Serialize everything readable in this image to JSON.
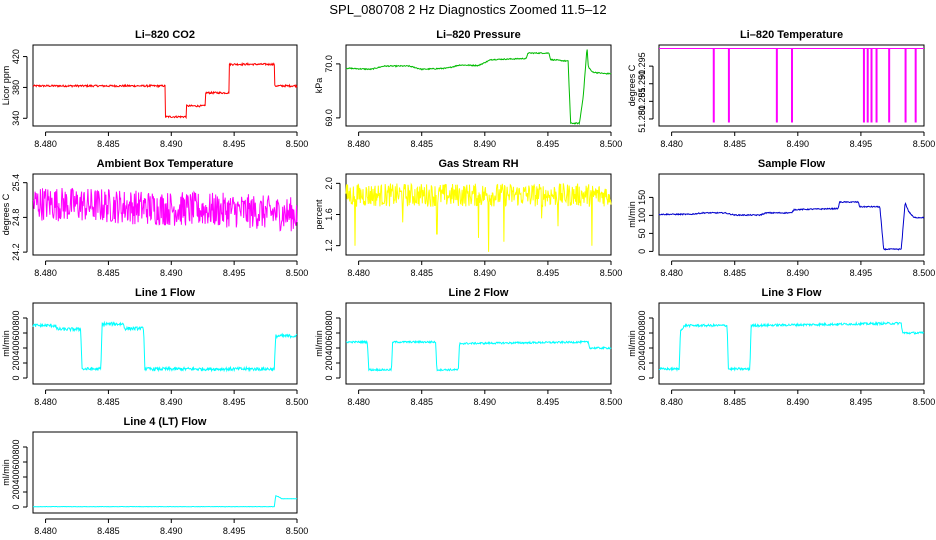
{
  "page": {
    "title": "SPL_080708  2 Hz Diagnostics Zoomed 11.5–12"
  },
  "chart_data": [
    {
      "type": "line",
      "title": "Li–820 CO2",
      "ylabel": "Licor ppm",
      "color": "#ff0000",
      "xlim": [
        8.479,
        8.5
      ],
      "xticks": [
        8.48,
        8.485,
        8.49,
        8.495,
        8.5
      ],
      "xtick_labels": [
        "8.480",
        "8.485",
        "8.490",
        "8.495",
        "8.500"
      ],
      "ylim": [
        330,
        435
      ],
      "yticks": [
        340,
        380,
        420
      ],
      "ytick_labels": [
        "340",
        "380",
        "420"
      ],
      "x": [
        8.479,
        8.4895,
        8.4895,
        8.4912,
        8.4912,
        8.4927,
        8.4927,
        8.4946,
        8.4946,
        8.4982,
        8.4982,
        8.5
      ],
      "y": [
        382,
        382,
        342,
        342,
        356,
        356,
        373,
        373,
        410,
        410,
        382,
        382
      ],
      "noise": 1.2
    },
    {
      "type": "line",
      "title": "Li–820 Pressure",
      "ylabel": "kPa",
      "color": "#00bb00",
      "xlim": [
        8.479,
        8.5
      ],
      "xticks": [
        8.48,
        8.485,
        8.49,
        8.495,
        8.5
      ],
      "xtick_labels": [
        "8.480",
        "8.485",
        "8.490",
        "8.495",
        "8.500"
      ],
      "ylim": [
        68.85,
        70.35
      ],
      "yticks": [
        69.0,
        70.0
      ],
      "ytick_labels": [
        "69.0",
        "70.0"
      ],
      "x": [
        8.479,
        8.481,
        8.482,
        8.484,
        8.485,
        8.487,
        8.488,
        8.4895,
        8.4905,
        8.4933,
        8.4934,
        8.4951,
        8.4952,
        8.4966,
        8.4968,
        8.4975,
        8.4978,
        8.4981,
        8.4982,
        8.4985,
        8.4995,
        8.5
      ],
      "y": [
        69.92,
        69.9,
        69.96,
        69.96,
        69.9,
        69.92,
        69.98,
        69.97,
        70.08,
        70.1,
        70.2,
        70.2,
        70.08,
        70.05,
        68.9,
        68.9,
        69.4,
        70.3,
        69.95,
        69.85,
        69.82,
        69.82
      ],
      "noise": 0.01
    },
    {
      "type": "line",
      "title": "Li–820 Temperature",
      "ylabel": "degrees C",
      "color": "#ff00ff",
      "xlim": [
        8.479,
        8.5
      ],
      "xticks": [
        8.48,
        8.485,
        8.49,
        8.495,
        8.5
      ],
      "xtick_labels": [
        "8.480",
        "8.485",
        "8.490",
        "8.495",
        "8.500"
      ],
      "ylim": [
        51.278,
        51.301
      ],
      "yticks": [
        51.28,
        51.285,
        51.29,
        51.295
      ],
      "ytick_labels": [
        "51.280",
        "51.285",
        "51.290",
        "51.295"
      ],
      "baseline": 51.3,
      "low": 51.279,
      "spikes": [
        8.4833,
        8.4845,
        8.4883,
        8.4895,
        8.4952,
        8.4955,
        8.4958,
        8.4962,
        8.4972,
        8.4985,
        8.4993
      ],
      "noise": 0
    },
    {
      "type": "line",
      "title": "Ambient Box Temperature",
      "ylabel": "degrees C",
      "color": "#ff00ff",
      "xlim": [
        8.479,
        8.5
      ],
      "xticks": [
        8.48,
        8.485,
        8.49,
        8.495,
        8.5
      ],
      "xtick_labels": [
        "8.480",
        "8.485",
        "8.490",
        "8.495",
        "8.500"
      ],
      "ylim": [
        24.15,
        25.55
      ],
      "yticks": [
        24.2,
        24.8,
        25.4
      ],
      "ytick_labels": [
        "24.2",
        "24.8",
        "25.4"
      ],
      "x": [
        8.479,
        8.485,
        8.49,
        8.495,
        8.5
      ],
      "y": [
        25.05,
        25.0,
        24.95,
        24.92,
        24.85
      ],
      "noise": 0.3
    },
    {
      "type": "line",
      "title": "Gas Stream RH",
      "ylabel": "percent",
      "color": "#ffff00",
      "xlim": [
        8.479,
        8.5
      ],
      "xticks": [
        8.48,
        8.485,
        8.49,
        8.495,
        8.5
      ],
      "xtick_labels": [
        "8.480",
        "8.485",
        "8.490",
        "8.495",
        "8.500"
      ],
      "ylim": [
        1.08,
        2.12
      ],
      "yticks": [
        1.2,
        1.6,
        2.0
      ],
      "ytick_labels": [
        "1.2",
        "1.6",
        "2.0"
      ],
      "x": [
        8.479,
        8.5
      ],
      "y": [
        1.85,
        1.85
      ],
      "noise": 0.15,
      "dips": [
        [
          8.4797,
          1.2
        ],
        [
          8.4835,
          1.5
        ],
        [
          8.4862,
          1.35
        ],
        [
          8.4895,
          1.3
        ],
        [
          8.4903,
          1.12
        ],
        [
          8.4915,
          1.25
        ],
        [
          8.4945,
          1.55
        ],
        [
          8.4958,
          1.45
        ],
        [
          8.4985,
          1.2
        ]
      ]
    },
    {
      "type": "line",
      "title": "Sample Flow",
      "ylabel": "ml/min",
      "color": "#0000cc",
      "xlim": [
        8.479,
        8.5
      ],
      "xticks": [
        8.48,
        8.485,
        8.49,
        8.495,
        8.5
      ],
      "xtick_labels": [
        "8.480",
        "8.485",
        "8.490",
        "8.495",
        "8.500"
      ],
      "ylim": [
        -10,
        215
      ],
      "yticks": [
        0,
        50,
        100,
        150
      ],
      "ytick_labels": [
        "0",
        "50",
        "100",
        "150"
      ],
      "x": [
        8.479,
        8.4815,
        8.4825,
        8.4842,
        8.485,
        8.487,
        8.4875,
        8.4895,
        8.4897,
        8.4932,
        8.4933,
        8.4948,
        8.4949,
        8.4965,
        8.4968,
        8.4982,
        8.4985,
        8.4988,
        8.4992,
        8.5
      ],
      "y": [
        103,
        103,
        107,
        107,
        101,
        101,
        107,
        107,
        116,
        119,
        137,
        137,
        124,
        124,
        6,
        6,
        135,
        110,
        94,
        94
      ],
      "noise": 1.5
    },
    {
      "type": "line",
      "title": "Line 1 Flow",
      "ylabel": "ml/min",
      "color": "#00ffff",
      "xlim": [
        8.479,
        8.5
      ],
      "xticks": [
        8.48,
        8.485,
        8.49,
        8.495,
        8.5
      ],
      "xtick_labels": [
        "8.480",
        "8.485",
        "8.490",
        "8.495",
        "8.500"
      ],
      "ylim": [
        -80,
        1000
      ],
      "yticks": [
        0,
        200,
        400,
        600,
        800
      ],
      "ytick_labels": [
        "0",
        "200",
        "400",
        "600",
        "800"
      ],
      "x": [
        8.479,
        8.4808,
        8.4809,
        8.4828,
        8.4829,
        8.4844,
        8.4845,
        8.4862,
        8.4863,
        8.4878,
        8.4879,
        8.4982,
        8.4983,
        8.5
      ],
      "y": [
        700,
        700,
        650,
        650,
        120,
        120,
        720,
        720,
        660,
        660,
        120,
        120,
        560,
        560
      ],
      "noise": 22
    },
    {
      "type": "line",
      "title": "Line 2 Flow",
      "ylabel": "ml/min",
      "color": "#00ffff",
      "xlim": [
        8.479,
        8.5
      ],
      "xticks": [
        8.48,
        8.485,
        8.49,
        8.495,
        8.5
      ],
      "xtick_labels": [
        "8.480",
        "8.485",
        "8.490",
        "8.495",
        "8.500"
      ],
      "ylim": [
        -80,
        1000
      ],
      "yticks": [
        0,
        200,
        400,
        600,
        800
      ],
      "ytick_labels": [
        "0",
        "200",
        "400",
        "600",
        "800"
      ],
      "x": [
        8.479,
        8.4807,
        8.4808,
        8.4826,
        8.4827,
        8.4861,
        8.4862,
        8.4879,
        8.488,
        8.4982,
        8.4983,
        8.5
      ],
      "y": [
        480,
        480,
        110,
        110,
        480,
        480,
        110,
        110,
        460,
        480,
        400,
        400
      ],
      "noise": 12
    },
    {
      "type": "line",
      "title": "Line 3 Flow",
      "ylabel": "ml/min",
      "color": "#00ffff",
      "xlim": [
        8.479,
        8.5
      ],
      "xticks": [
        8.48,
        8.485,
        8.49,
        8.495,
        8.5
      ],
      "xtick_labels": [
        "8.480",
        "8.485",
        "8.490",
        "8.495",
        "8.500"
      ],
      "ylim": [
        -80,
        1000
      ],
      "yticks": [
        0,
        200,
        400,
        600,
        800
      ],
      "ytick_labels": [
        "0",
        "200",
        "400",
        "600",
        "800"
      ],
      "x": [
        8.479,
        8.4806,
        8.4807,
        8.4809,
        8.481,
        8.4844,
        8.4845,
        8.4862,
        8.4863,
        8.4982,
        8.4983,
        8.5
      ],
      "y": [
        120,
        120,
        650,
        650,
        700,
        700,
        120,
        120,
        700,
        730,
        600,
        600
      ],
      "noise": 15
    },
    {
      "type": "line",
      "title": "Line 4 (LT) Flow",
      "ylabel": "ml/min",
      "color": "#00ffff",
      "xlim": [
        8.479,
        8.5
      ],
      "xticks": [
        8.48,
        8.485,
        8.49,
        8.495,
        8.5
      ],
      "xtick_labels": [
        "8.480",
        "8.485",
        "8.490",
        "8.495",
        "8.500"
      ],
      "ylim": [
        -80,
        1000
      ],
      "yticks": [
        0,
        200,
        400,
        600,
        800
      ],
      "ytick_labels": [
        "0",
        "200",
        "400",
        "600",
        "800"
      ],
      "x": [
        8.479,
        8.4982,
        8.4983,
        8.4985,
        8.4988,
        8.5
      ],
      "y": [
        5,
        5,
        150,
        140,
        110,
        110
      ],
      "noise": 2
    }
  ]
}
